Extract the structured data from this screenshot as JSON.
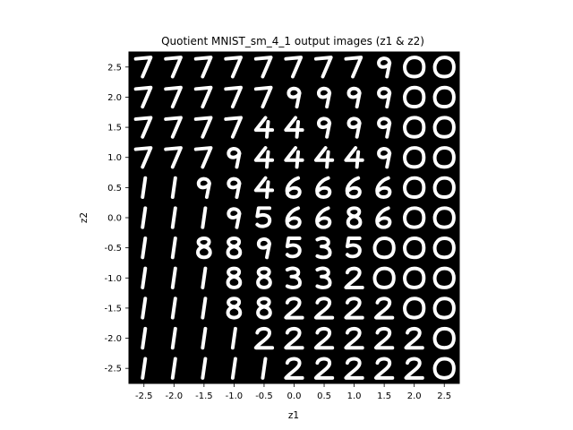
{
  "chart_data": {
    "type": "image-grid",
    "title": "Quotient MNIST_sm_4_1 output images (z1 & z2)",
    "xlabel": "z1",
    "ylabel": "z2",
    "xlim": [
      -2.5,
      2.5
    ],
    "ylim": [
      -2.5,
      2.5
    ],
    "x_ticks": [
      "-2.5",
      "-2.0",
      "-1.5",
      "-1.0",
      "-0.5",
      "0.0",
      "0.5",
      "1.0",
      "1.5",
      "2.0",
      "2.5"
    ],
    "y_ticks": [
      "2.5",
      "2.0",
      "1.5",
      "1.0",
      "0.5",
      "0.0",
      "-0.5",
      "-1.0",
      "-1.5",
      "-2.0",
      "-2.5"
    ],
    "background_color": "#000000",
    "digit_color": "#ffffff",
    "grid": false,
    "rows": [
      {
        "z2": 2.5,
        "digits": [
          "7",
          "7",
          "7",
          "7",
          "7",
          "7",
          "7",
          "7",
          "9",
          "0",
          "0"
        ]
      },
      {
        "z2": 2.0,
        "digits": [
          "7",
          "7",
          "7",
          "7",
          "7",
          "9",
          "9",
          "9",
          "9",
          "0",
          "0"
        ]
      },
      {
        "z2": 1.5,
        "digits": [
          "7",
          "7",
          "7",
          "7",
          "4",
          "4",
          "9",
          "9",
          "9",
          "0",
          "0"
        ]
      },
      {
        "z2": 1.0,
        "digits": [
          "7",
          "7",
          "7",
          "9",
          "4",
          "4",
          "4",
          "4",
          "9",
          "0",
          "0"
        ]
      },
      {
        "z2": 0.5,
        "digits": [
          "1",
          "1",
          "9",
          "9",
          "4",
          "6",
          "6",
          "6",
          "6",
          "0",
          "0"
        ]
      },
      {
        "z2": 0.0,
        "digits": [
          "1",
          "1",
          "1",
          "9",
          "5",
          "6",
          "6",
          "8",
          "6",
          "0",
          "0"
        ]
      },
      {
        "z2": -0.5,
        "digits": [
          "1",
          "1",
          "8",
          "8",
          "9",
          "5",
          "3",
          "5",
          "0",
          "0",
          "0"
        ]
      },
      {
        "z2": -1.0,
        "digits": [
          "1",
          "1",
          "1",
          "8",
          "8",
          "3",
          "3",
          "2",
          "0",
          "0",
          "0"
        ]
      },
      {
        "z2": -1.5,
        "digits": [
          "1",
          "1",
          "1",
          "8",
          "8",
          "2",
          "2",
          "2",
          "2",
          "0",
          "0"
        ]
      },
      {
        "z2": -2.0,
        "digits": [
          "1",
          "1",
          "1",
          "1",
          "2",
          "2",
          "2",
          "2",
          "2",
          "2",
          "0"
        ]
      },
      {
        "z2": -2.5,
        "digits": [
          "1",
          "1",
          "1",
          "1",
          "1",
          "2",
          "2",
          "2",
          "2",
          "2",
          "0"
        ]
      }
    ]
  }
}
